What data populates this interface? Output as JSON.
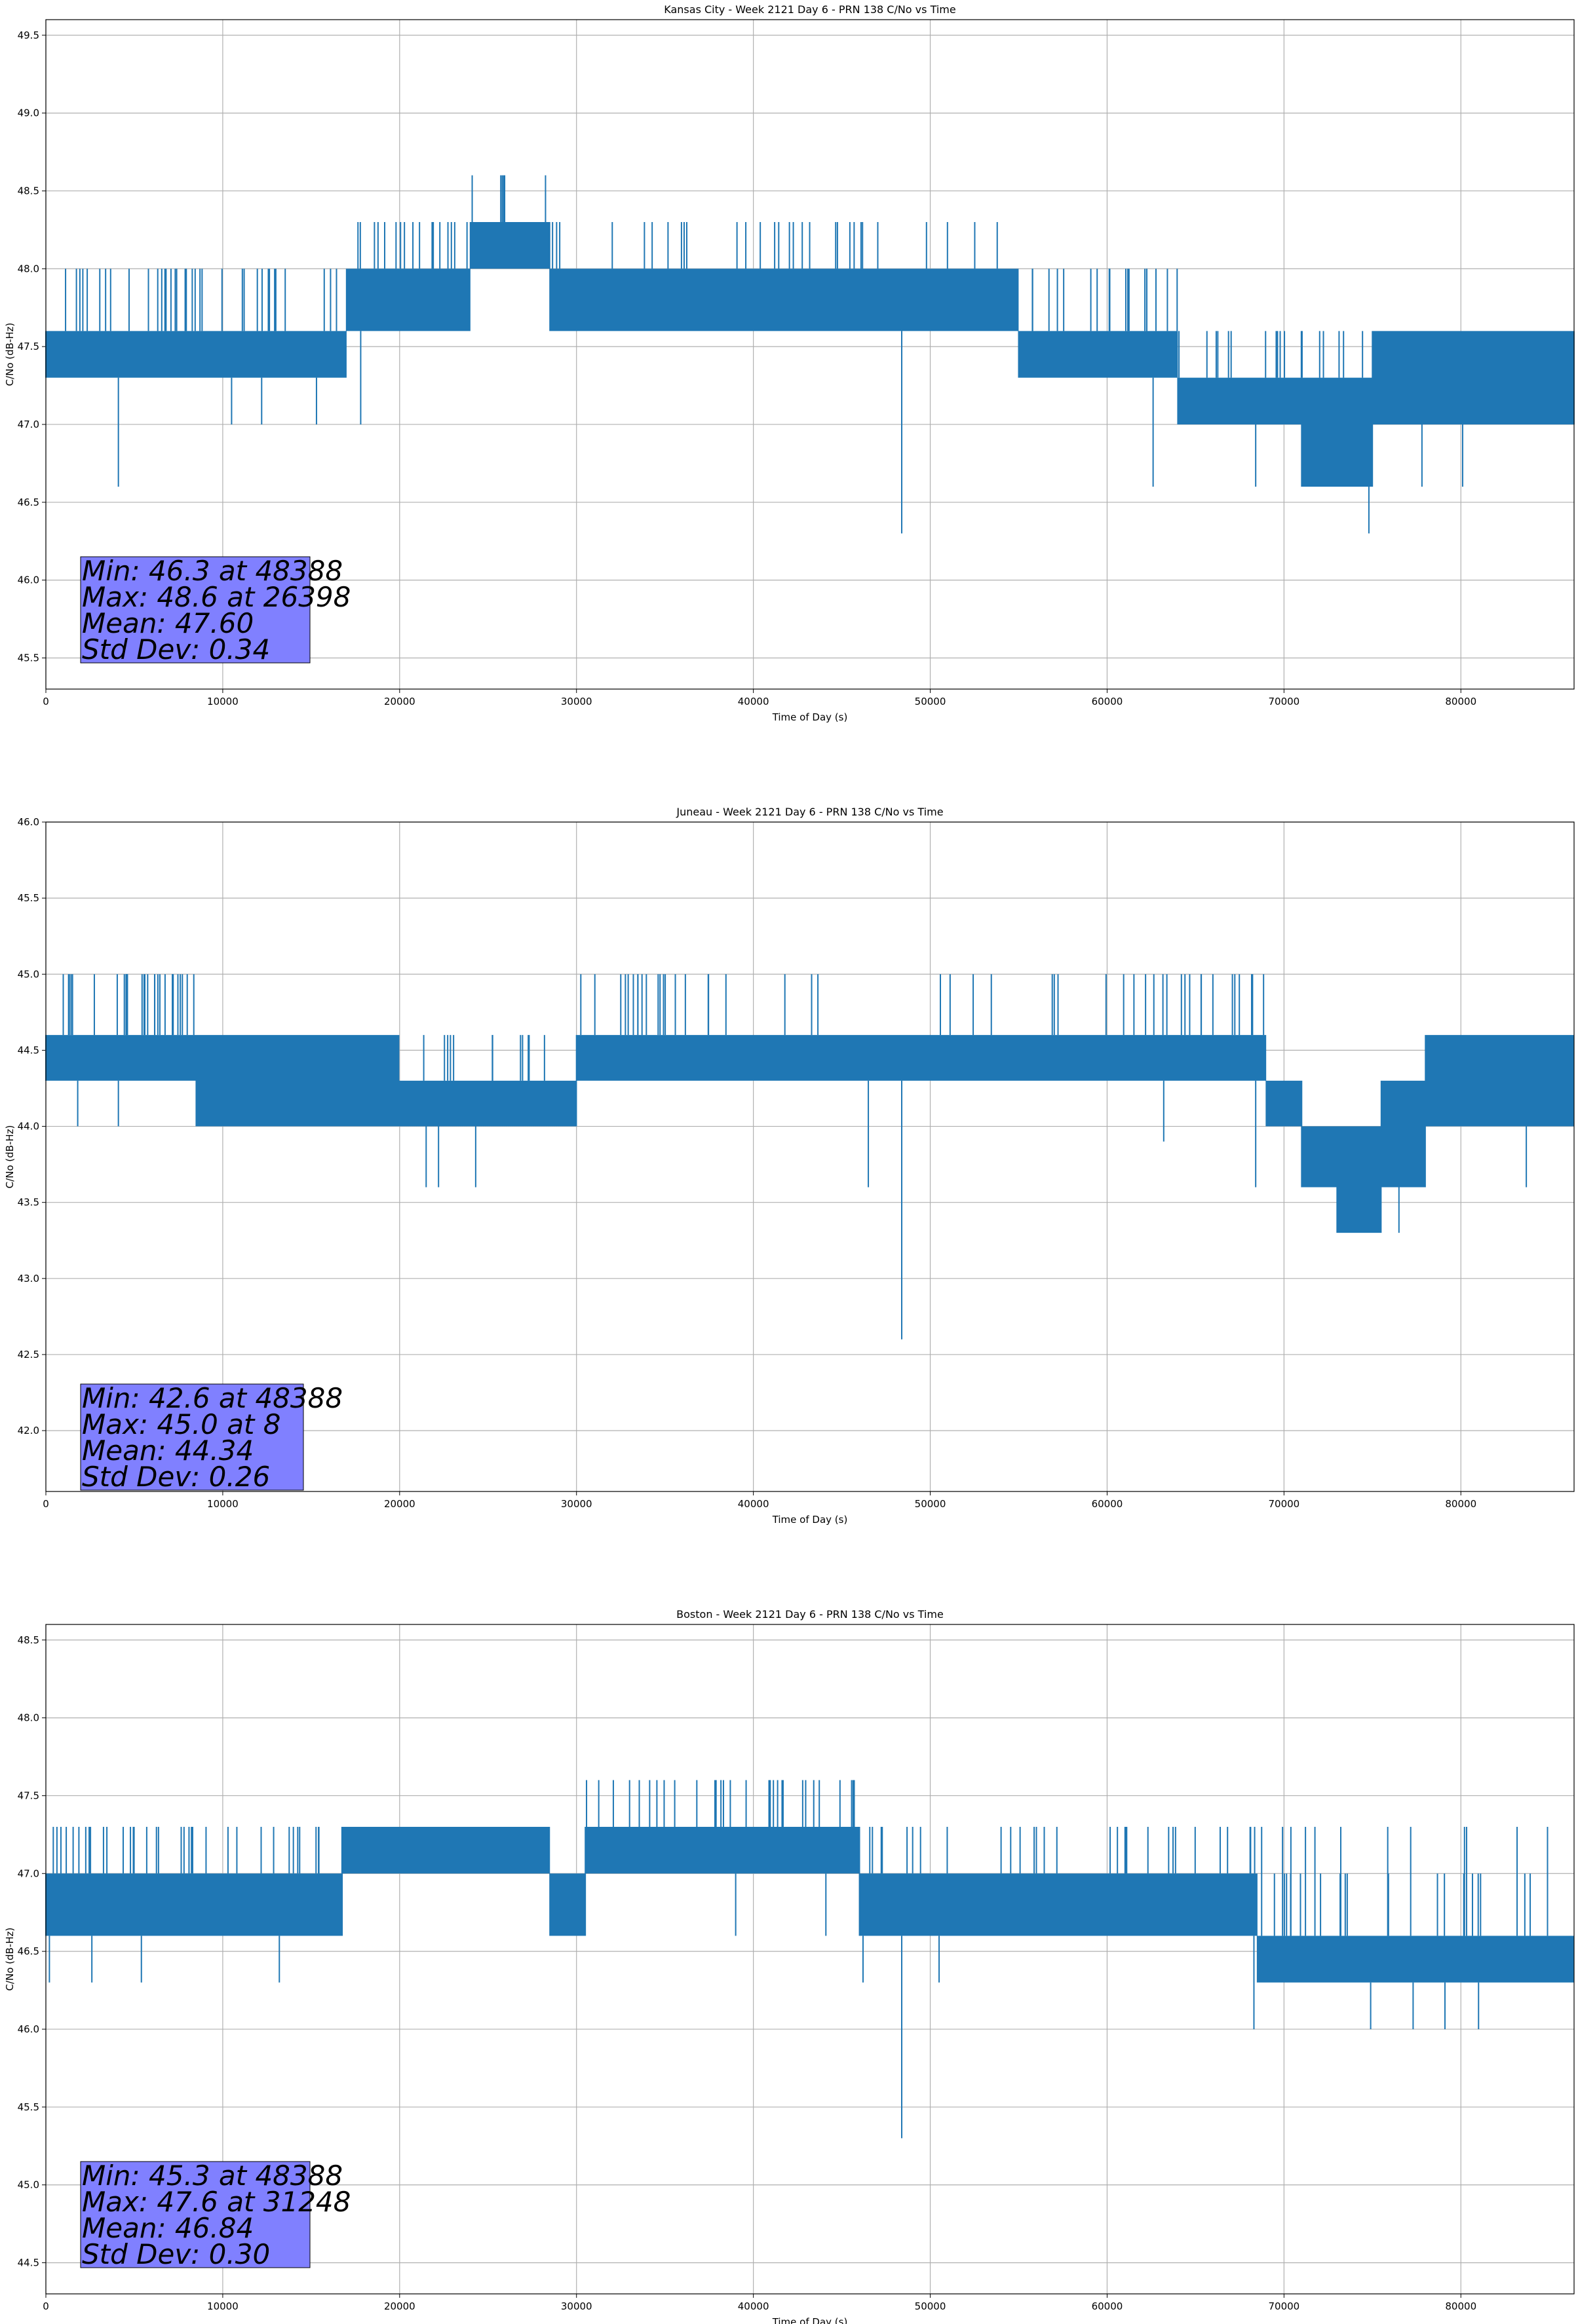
{
  "chart_data": [
    {
      "type": "line",
      "title": "Kansas City - Week 2121 Day 6 - PRN 138 C/No vs Time",
      "xlabel": "Time of Day (s)",
      "ylabel": "C/No (dB-Hz)",
      "xlim": [
        0,
        86400
      ],
      "ylim": [
        45.3,
        49.6
      ],
      "xticks": [
        0,
        10000,
        20000,
        30000,
        40000,
        50000,
        60000,
        70000,
        80000
      ],
      "yticks": [
        45.5,
        46.0,
        46.5,
        47.0,
        47.5,
        48.0,
        48.5,
        49.0,
        49.5
      ],
      "grid": true,
      "color": "#1f77b4",
      "series": [
        {
          "segments": [
            {
              "x0": 0,
              "x1": 10000,
              "low": 47.3,
              "high": 47.6,
              "spikes_up": [
                48.0,
                48.0,
                48.0,
                48.0
              ]
            },
            {
              "x0": 10000,
              "x1": 17000,
              "low": 47.3,
              "high": 47.6,
              "spikes_up": [
                48.0,
                48.0
              ]
            },
            {
              "x0": 17000,
              "x1": 24000,
              "low": 47.6,
              "high": 48.0,
              "spikes_up": [
                48.3,
                48.3,
                48.3
              ]
            },
            {
              "x0": 24000,
              "x1": 28500,
              "low": 48.0,
              "high": 48.3,
              "spikes_up": [
                48.6
              ]
            },
            {
              "x0": 28500,
              "x1": 55000,
              "low": 47.6,
              "high": 48.0,
              "spikes_up": [
                48.3,
                48.3,
                48.3,
                48.3,
                48.3
              ]
            },
            {
              "x0": 55000,
              "x1": 64000,
              "low": 47.3,
              "high": 47.6,
              "spikes_up": [
                48.0,
                48.0,
                48.0
              ]
            },
            {
              "x0": 64000,
              "x1": 71000,
              "low": 47.0,
              "high": 47.3,
              "spikes_up": [
                47.6,
                47.6
              ]
            },
            {
              "x0": 71000,
              "x1": 75000,
              "low": 46.6,
              "high": 47.3,
              "spikes_up": [
                47.6
              ]
            },
            {
              "x0": 75000,
              "x1": 86400,
              "low": 47.0,
              "high": 47.6,
              "spikes_up": [
                47.6,
                47.6
              ]
            }
          ],
          "dips": [
            {
              "x": 4100,
              "y": 46.6
            },
            {
              "x": 10500,
              "y": 47.0
            },
            {
              "x": 12200,
              "y": 47.0
            },
            {
              "x": 15300,
              "y": 47.0
            },
            {
              "x": 17800,
              "y": 47.0
            },
            {
              "x": 48388,
              "y": 46.3
            },
            {
              "x": 62600,
              "y": 46.6
            },
            {
              "x": 68400,
              "y": 46.6
            },
            {
              "x": 74800,
              "y": 46.3
            },
            {
              "x": 77800,
              "y": 46.6
            },
            {
              "x": 80100,
              "y": 46.6
            }
          ]
        }
      ],
      "stats": {
        "min": "Min: 46.3 at 48388",
        "max": "Max: 48.6 at 26398",
        "mean": "Mean: 47.60",
        "std": "Std Dev: 0.34"
      },
      "stats_box_color": "#8080ff"
    },
    {
      "type": "line",
      "title": "Juneau - Week 2121 Day 6 - PRN 138 C/No vs Time",
      "xlabel": "Time of Day (s)",
      "ylabel": "C/No (dB-Hz)",
      "xlim": [
        0,
        86400
      ],
      "ylim": [
        41.6,
        46.0
      ],
      "xticks": [
        0,
        10000,
        20000,
        30000,
        40000,
        50000,
        60000,
        70000,
        80000
      ],
      "yticks": [
        42.0,
        42.5,
        43.0,
        43.5,
        44.0,
        44.5,
        45.0,
        45.5,
        46.0
      ],
      "grid": true,
      "color": "#1f77b4",
      "series": [
        {
          "segments": [
            {
              "x0": 0,
              "x1": 4000,
              "low": 44.3,
              "high": 44.6,
              "spikes_up": [
                45.0
              ]
            },
            {
              "x0": 4000,
              "x1": 8500,
              "low": 44.3,
              "high": 44.6,
              "spikes_up": [
                45.0,
                45.0,
                45.0,
                45.0
              ]
            },
            {
              "x0": 8500,
              "x1": 20000,
              "low": 44.0,
              "high": 44.6,
              "spikes_up": [
                44.6,
                44.6
              ]
            },
            {
              "x0": 20000,
              "x1": 30000,
              "low": 44.0,
              "high": 44.3,
              "spikes_up": [
                44.6,
                44.6
              ]
            },
            {
              "x0": 30000,
              "x1": 38000,
              "low": 44.3,
              "high": 44.6,
              "spikes_up": [
                45.0,
                45.0,
                45.0
              ]
            },
            {
              "x0": 38000,
              "x1": 52000,
              "low": 44.3,
              "high": 44.6,
              "spikes_up": [
                44.6,
                45.0
              ]
            },
            {
              "x0": 52000,
              "x1": 69000,
              "low": 44.3,
              "high": 44.6,
              "spikes_up": [
                45.0,
                45.0,
                45.0,
                45.0
              ]
            },
            {
              "x0": 69000,
              "x1": 71000,
              "low": 44.0,
              "high": 44.3,
              "spikes_up": []
            },
            {
              "x0": 71000,
              "x1": 73000,
              "low": 43.6,
              "high": 44.0,
              "spikes_up": []
            },
            {
              "x0": 73000,
              "x1": 75500,
              "low": 43.3,
              "high": 44.0,
              "spikes_up": []
            },
            {
              "x0": 75500,
              "x1": 78000,
              "low": 43.6,
              "high": 44.3,
              "spikes_up": []
            },
            {
              "x0": 78000,
              "x1": 86400,
              "low": 44.0,
              "high": 44.6,
              "spikes_up": [
                44.6,
                44.6
              ]
            }
          ],
          "dips": [
            {
              "x": 1800,
              "y": 44.0
            },
            {
              "x": 4100,
              "y": 44.0
            },
            {
              "x": 10000,
              "y": 44.0
            },
            {
              "x": 21500,
              "y": 43.6
            },
            {
              "x": 22200,
              "y": 43.6
            },
            {
              "x": 24300,
              "y": 43.6
            },
            {
              "x": 46500,
              "y": 43.6
            },
            {
              "x": 48388,
              "y": 42.6
            },
            {
              "x": 63200,
              "y": 43.9
            },
            {
              "x": 68400,
              "y": 43.6
            },
            {
              "x": 76500,
              "y": 43.3
            },
            {
              "x": 83700,
              "y": 43.6
            }
          ]
        }
      ],
      "stats": {
        "min": "Min: 42.6 at 48388",
        "max": "Max: 45.0 at 8",
        "mean": "Mean: 44.34",
        "std": "Std Dev: 0.26"
      },
      "stats_box_color": "#8080ff"
    },
    {
      "type": "line",
      "title": "Boston - Week 2121 Day 6 - PRN 138 C/No vs Time",
      "xlabel": "Time of Day (s)",
      "ylabel": "C/No (dB-Hz)",
      "xlim": [
        0,
        86400
      ],
      "ylim": [
        44.3,
        48.6
      ],
      "xticks": [
        0,
        10000,
        20000,
        30000,
        40000,
        50000,
        60000,
        70000,
        80000
      ],
      "yticks": [
        44.5,
        45.0,
        45.5,
        46.0,
        46.5,
        47.0,
        47.5,
        48.0,
        48.5
      ],
      "grid": true,
      "color": "#1f77b4",
      "series": [
        {
          "segments": [
            {
              "x0": 0,
              "x1": 10000,
              "low": 46.6,
              "high": 47.0,
              "spikes_up": [
                47.3,
                47.3,
                47.3,
                47.3
              ]
            },
            {
              "x0": 10000,
              "x1": 16800,
              "low": 46.6,
              "high": 47.0,
              "spikes_up": [
                47.3,
                47.3
              ]
            },
            {
              "x0": 16800,
              "x1": 28500,
              "low": 47.0,
              "high": 47.3,
              "spikes_up": []
            },
            {
              "x0": 28500,
              "x1": 30500,
              "low": 46.6,
              "high": 47.0,
              "spikes_up": []
            },
            {
              "x0": 30500,
              "x1": 46000,
              "low": 47.0,
              "high": 47.3,
              "spikes_up": [
                47.6,
                47.6,
                47.6,
                47.6,
                47.6
              ]
            },
            {
              "x0": 46000,
              "x1": 68500,
              "low": 46.6,
              "high": 47.0,
              "spikes_up": [
                47.3,
                47.3,
                47.3,
                47.3,
                47.3
              ]
            },
            {
              "x0": 68500,
              "x1": 86400,
              "low": 46.3,
              "high": 46.6,
              "spikes_up": [
                47.0,
                47.0,
                47.0,
                47.3,
                47.3
              ]
            }
          ],
          "dips": [
            {
              "x": 200,
              "y": 46.3
            },
            {
              "x": 2600,
              "y": 46.3
            },
            {
              "x": 5400,
              "y": 46.3
            },
            {
              "x": 13200,
              "y": 46.3
            },
            {
              "x": 39000,
              "y": 46.6
            },
            {
              "x": 44100,
              "y": 46.6
            },
            {
              "x": 46200,
              "y": 46.3
            },
            {
              "x": 48388,
              "y": 45.3
            },
            {
              "x": 50500,
              "y": 46.3
            },
            {
              "x": 68300,
              "y": 46.0
            },
            {
              "x": 74900,
              "y": 46.0
            },
            {
              "x": 77300,
              "y": 46.0
            },
            {
              "x": 79100,
              "y": 46.0
            },
            {
              "x": 81000,
              "y": 46.0
            }
          ]
        }
      ],
      "stats": {
        "min": "Min: 45.3 at 48388",
        "max": "Max: 47.6 at 31248",
        "mean": "Mean: 46.84",
        "std": "Std Dev: 0.30"
      },
      "stats_box_color": "#8080ff"
    }
  ]
}
